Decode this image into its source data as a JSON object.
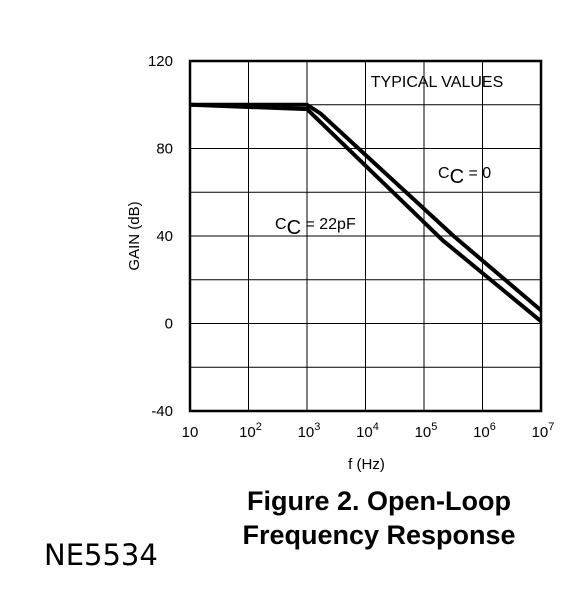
{
  "chart_data": {
    "type": "line",
    "title": "",
    "xlabel": "f (Hz)",
    "ylabel": "GAIN (dB)",
    "xscale": "log",
    "xlim": [
      10,
      10000000
    ],
    "ylim": [
      -40,
      120
    ],
    "x_ticks": [
      {
        "base": "10",
        "exp": ""
      },
      {
        "base": "10",
        "exp": "2"
      },
      {
        "base": "10",
        "exp": "3"
      },
      {
        "base": "10",
        "exp": "4"
      },
      {
        "base": "10",
        "exp": "5"
      },
      {
        "base": "10",
        "exp": "6"
      },
      {
        "base": "10",
        "exp": "7"
      }
    ],
    "y_ticks": [
      "-40",
      "0",
      "40",
      "80",
      "120"
    ],
    "grid": true,
    "annotation": "TYPICAL VALUES",
    "series": [
      {
        "label_main": "C",
        "label_sub": "C",
        "label_rest": " = 0",
        "x": [
          10,
          1000,
          1700,
          320000,
          10000000
        ],
        "y": [
          100,
          100,
          96,
          40,
          6
        ]
      },
      {
        "label_main": "C",
        "label_sub": "C",
        "label_rest": " = 22pF",
        "x": [
          10,
          1000,
          210000,
          10000000
        ],
        "y": [
          100,
          98,
          38,
          1
        ]
      }
    ]
  },
  "caption": {
    "line1": "Figure 2. Open-Loop",
    "line2": "Frequency Response"
  },
  "part_number": "NE5534"
}
